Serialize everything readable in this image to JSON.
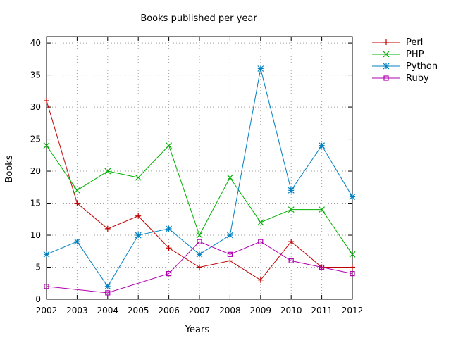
{
  "chart_data": {
    "type": "line",
    "title": "Books published per year",
    "xlabel": "Years",
    "ylabel": "Books",
    "x": [
      2002,
      2003,
      2004,
      2005,
      2006,
      2007,
      2008,
      2009,
      2010,
      2011,
      2012
    ],
    "xlim": [
      2002,
      2012
    ],
    "ylim": [
      0,
      41
    ],
    "yticks": [
      0,
      5,
      10,
      15,
      20,
      25,
      30,
      35,
      40
    ],
    "grid": true,
    "legend_position": "top-right outside",
    "series": [
      {
        "name": "Perl",
        "color": "#c00000",
        "marker": "plus",
        "values": [
          31,
          15,
          11,
          13,
          8,
          5,
          6,
          3,
          9,
          5,
          5
        ]
      },
      {
        "name": "PHP",
        "color": "#00b000",
        "marker": "cross",
        "values": [
          24,
          17,
          20,
          19,
          24,
          10,
          19,
          12,
          14,
          14,
          7
        ]
      },
      {
        "name": "Python",
        "color": "#0080c0",
        "marker": "star",
        "values": [
          7,
          9,
          2,
          10,
          11,
          7,
          10,
          36,
          17,
          24,
          16
        ]
      },
      {
        "name": "Ruby",
        "color": "#b000b0",
        "marker": "open-square",
        "values": [
          2,
          null,
          1,
          null,
          4,
          9,
          7,
          9,
          6,
          5,
          4
        ]
      }
    ]
  }
}
